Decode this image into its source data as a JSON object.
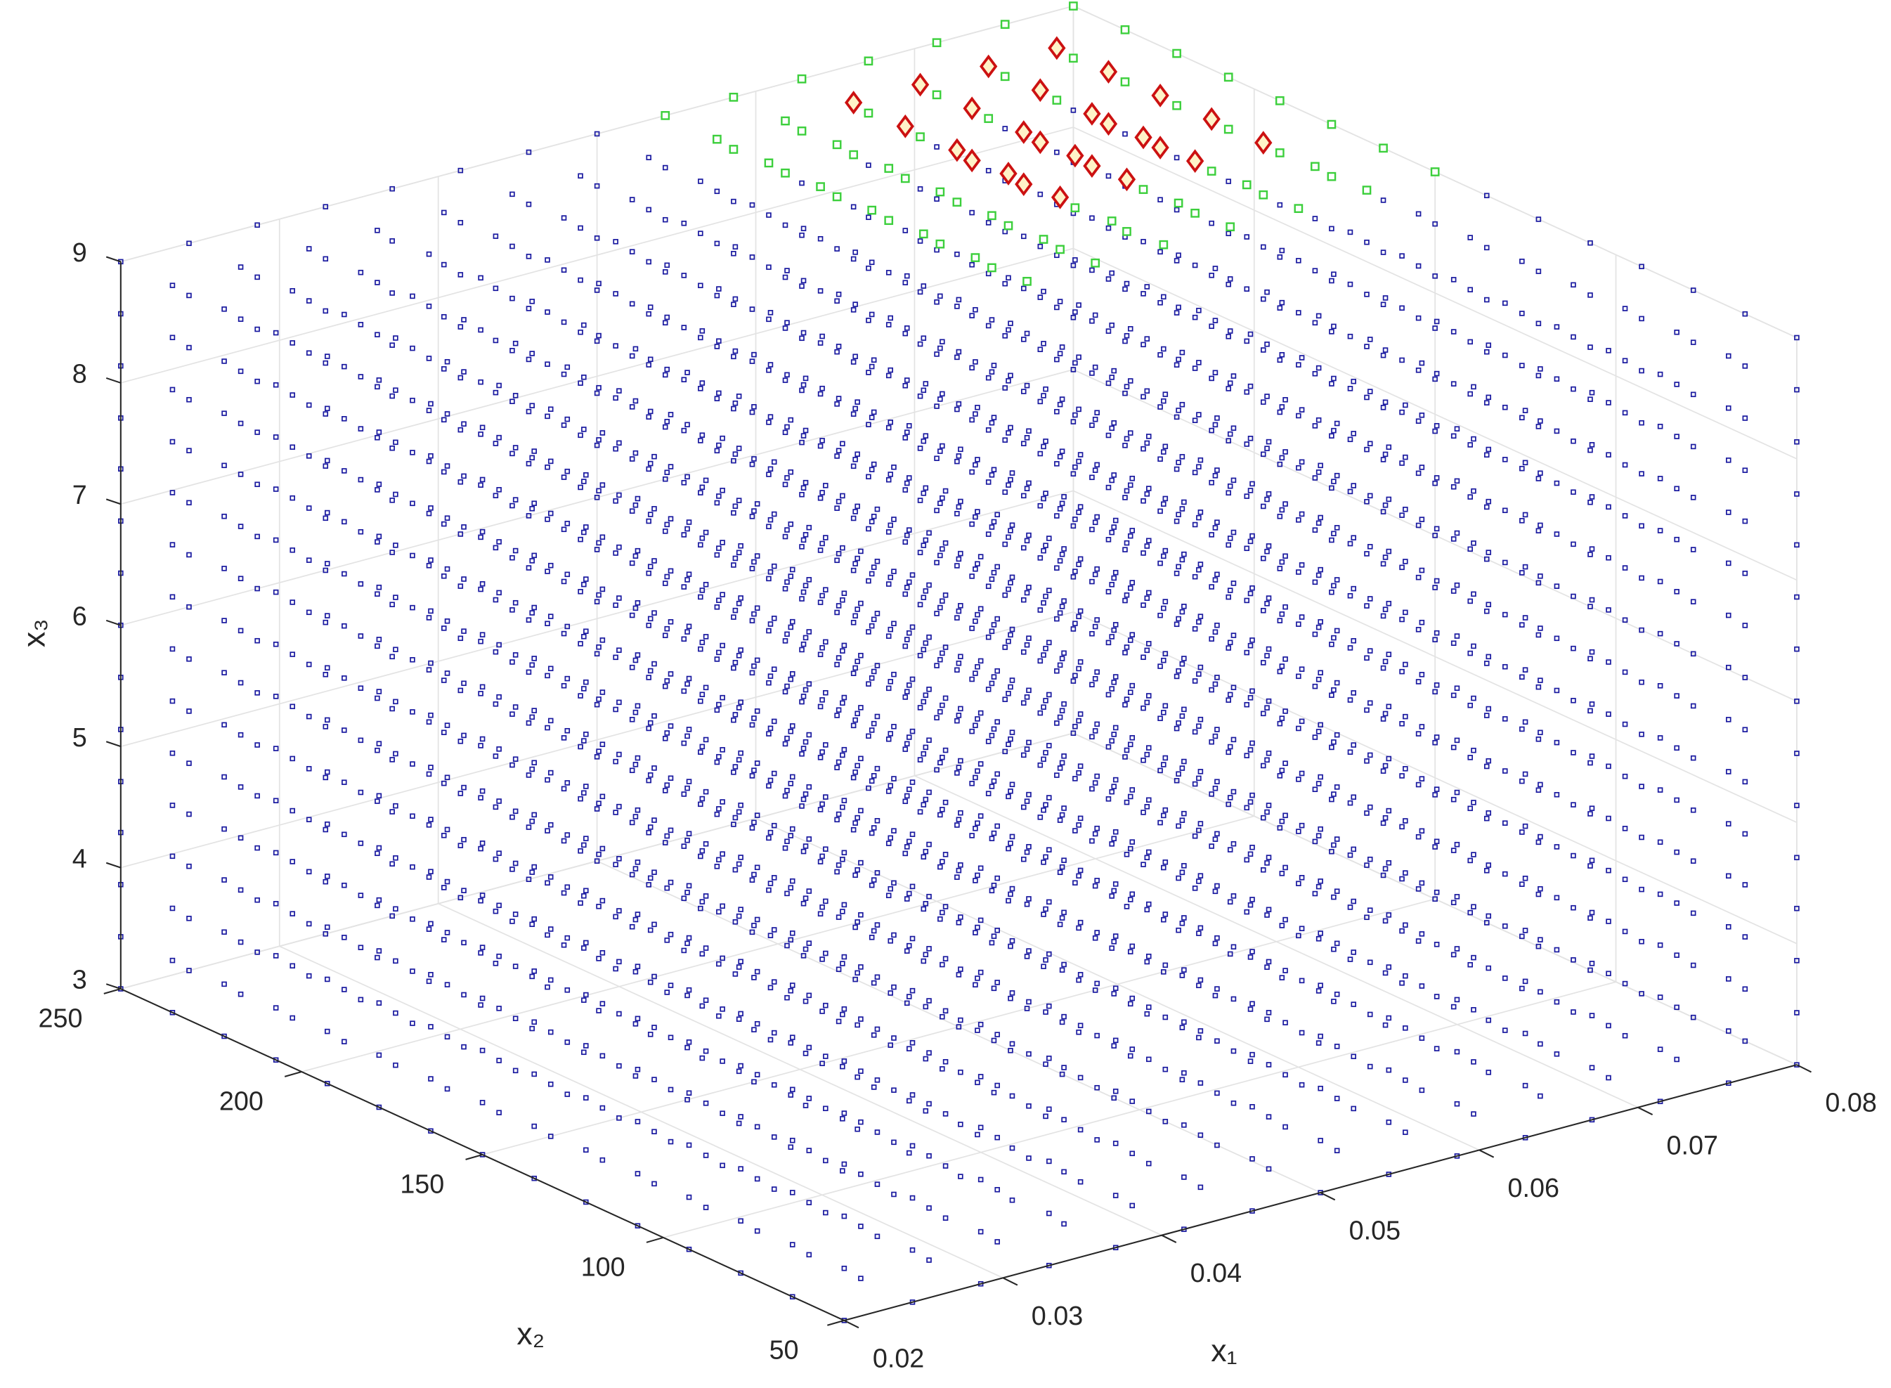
{
  "chart_data": {
    "type": "scatter3d",
    "xlabel": "x₁",
    "ylabel": "x₂",
    "zlabel": "x₃",
    "xlim": [
      0.02,
      0.08
    ],
    "ylim": [
      50,
      250
    ],
    "zlim": [
      3,
      9
    ],
    "xticks": [
      0.02,
      0.03,
      0.04,
      0.05,
      0.06,
      0.07,
      0.08
    ],
    "yticks": [
      50,
      100,
      150,
      200,
      250
    ],
    "zticks": [
      3,
      4,
      5,
      6,
      7,
      8,
      9
    ],
    "grid": true,
    "lattice": {
      "color": "#1a1aa0",
      "x1": [
        0.02,
        0.0243,
        0.0286,
        0.0329,
        0.0371,
        0.0414,
        0.0457,
        0.05,
        0.0543,
        0.0586,
        0.0629,
        0.0671,
        0.0714,
        0.0757,
        0.08
      ],
      "x2": [
        50,
        64.3,
        78.6,
        92.9,
        107.1,
        121.4,
        135.7,
        150,
        164.3,
        178.6,
        192.9,
        207.1,
        221.4,
        235.7,
        250
      ],
      "x3": [
        3,
        3.43,
        3.86,
        4.29,
        4.71,
        5.14,
        5.57,
        6,
        6.43,
        6.86,
        7.29,
        7.71,
        8.14,
        8.57,
        9
      ]
    },
    "series": [
      {
        "marker": "square",
        "color": "#3ccf3c",
        "x1": [
          0.0543,
          0.0543,
          0.0543,
          0.0543,
          0.0543,
          0.0543,
          0.0543,
          0.0543,
          0.0586,
          0.0586,
          0.0586,
          0.0586,
          0.0586,
          0.0586,
          0.0586,
          0.0586,
          0.0629,
          0.0629,
          0.0629,
          0.0671,
          0.0671,
          0.0671,
          0.0714,
          0.0714,
          0.0714,
          0.0757,
          0.0757,
          0.0757,
          0.08,
          0.08,
          0.08,
          0.08,
          0.08,
          0.08,
          0.08,
          0.08,
          0.0586,
          0.0586,
          0.0586,
          0.0586,
          0.0586,
          0.0586,
          0.0629,
          0.0629,
          0.0629,
          0.0629,
          0.0629,
          0.0629,
          0.0671,
          0.0671,
          0.0671,
          0.0671,
          0.0714,
          0.0714,
          0.0714,
          0.0714,
          0.0757,
          0.0757,
          0.0757,
          0.0757,
          0.08,
          0.08,
          0.08,
          0.08,
          0.08,
          0.08
        ],
        "x2": [
          150,
          164.3,
          178.6,
          192.9,
          207.1,
          221.4,
          235.7,
          250,
          150,
          164.3,
          178.6,
          192.9,
          207.1,
          221.4,
          235.7,
          250,
          150,
          164.3,
          250,
          150,
          164.3,
          250,
          150,
          164.3,
          250,
          150,
          164.3,
          250,
          150,
          164.3,
          178.6,
          192.9,
          207.1,
          221.4,
          235.7,
          250,
          178.6,
          192.9,
          207.1,
          221.4,
          235.7,
          250,
          178.6,
          192.9,
          207.1,
          221.4,
          235.7,
          250,
          178.6,
          192.9,
          235.7,
          250,
          178.6,
          192.9,
          235.7,
          250,
          178.6,
          192.9,
          235.7,
          250,
          178.6,
          192.9,
          207.1,
          221.4,
          235.7,
          250
        ],
        "x3": [
          9,
          9,
          9,
          9,
          9,
          9,
          9,
          9,
          9,
          9,
          9,
          9,
          9,
          9,
          9,
          9,
          9,
          9,
          9,
          9,
          9,
          9,
          9,
          9,
          9,
          9,
          9,
          9,
          9,
          9,
          9,
          9,
          9,
          9,
          9,
          9,
          8.57,
          8.57,
          8.57,
          8.57,
          8.57,
          8.57,
          8.57,
          8.57,
          8.57,
          8.57,
          8.57,
          8.57,
          8.57,
          8.57,
          8.57,
          8.57,
          8.57,
          8.57,
          8.57,
          8.57,
          8.57,
          8.57,
          8.57,
          8.57,
          8.57,
          8.57,
          8.57,
          8.57,
          8.57,
          8.57
        ]
      },
      {
        "marker": "diamond",
        "color": "#cc1111",
        "x1": [
          0.0629,
          0.0629,
          0.0629,
          0.0629,
          0.0629,
          0.0671,
          0.0671,
          0.0671,
          0.0671,
          0.0671,
          0.0714,
          0.0714,
          0.0714,
          0.0714,
          0.0714,
          0.0757,
          0.0757,
          0.0757,
          0.0757,
          0.0757,
          0.0671,
          0.0671,
          0.0714,
          0.0714,
          0.0757,
          0.0757
        ],
        "x2": [
          178.6,
          192.9,
          207.1,
          221.4,
          235.7,
          178.6,
          192.9,
          207.1,
          221.4,
          235.7,
          178.6,
          192.9,
          207.1,
          221.4,
          235.7,
          178.6,
          192.9,
          207.1,
          221.4,
          235.7,
          207.1,
          221.4,
          207.1,
          221.4,
          207.1,
          221.4
        ],
        "x3": [
          9,
          9,
          9,
          9,
          9,
          9,
          9,
          9,
          9,
          9,
          9,
          9,
          9,
          9,
          9,
          9,
          9,
          9,
          9,
          9,
          8.57,
          8.57,
          8.57,
          8.57,
          8.57,
          8.57
        ]
      }
    ]
  }
}
